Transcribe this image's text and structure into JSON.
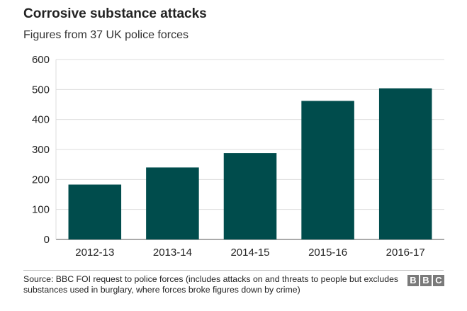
{
  "header": {
    "title": "Corrosive substance attacks",
    "subtitle": "Figures from 37 UK police forces"
  },
  "chart_data": {
    "type": "bar",
    "title": "Corrosive substance attacks",
    "subtitle": "Figures from 37 UK police forces",
    "categories": [
      "2012-13",
      "2013-14",
      "2014-15",
      "2015-16",
      "2016-17"
    ],
    "values": [
      183,
      240,
      288,
      462,
      504
    ],
    "xlabel": "",
    "ylabel": "",
    "ylim": [
      0,
      600
    ],
    "yticks": [
      0,
      100,
      200,
      300,
      400,
      500,
      600
    ],
    "grid": true,
    "bar_color": "#004c4c"
  },
  "footer": {
    "source": "Source: BBC FOI request to police forces (includes attacks on and threats to people but excludes substances used in burglary, where forces broke figures down by crime)",
    "logo_letters": [
      "B",
      "B",
      "C"
    ]
  }
}
